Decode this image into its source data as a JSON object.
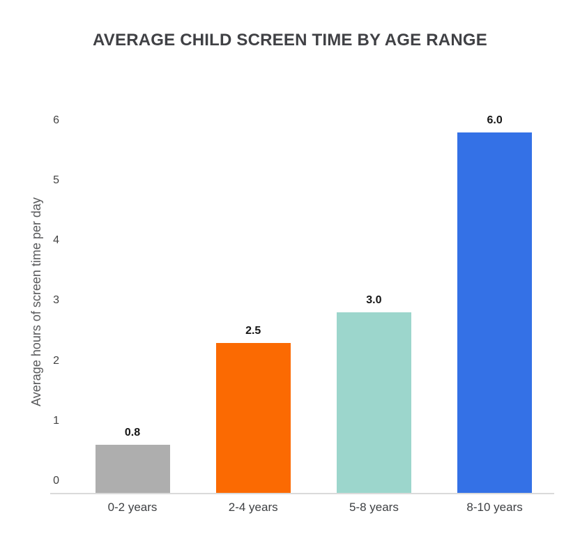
{
  "chart_data": {
    "type": "bar",
    "title": "AVERAGE CHILD SCREEN TIME BY AGE RANGE",
    "ylabel": "Average hours of screen time per day",
    "xlabel": "",
    "categories": [
      "0-2 years",
      "2-4 years",
      "5-8 years",
      "8-10 years"
    ],
    "values": [
      0.8,
      2.5,
      3.0,
      6.0
    ],
    "value_labels": [
      "0.8",
      "2.5",
      "3.0",
      "6.0"
    ],
    "bar_colors": [
      "#aeaeae",
      "#fb6a02",
      "#9cd6cc",
      "#3471e6"
    ],
    "bar_patterns": [
      "dots",
      "solid",
      "solid",
      "solid"
    ],
    "ylim": [
      0,
      6
    ],
    "yticks": [
      "0",
      "1",
      "2",
      "3",
      "4",
      "5",
      "6"
    ],
    "grid": false,
    "legend": "none",
    "background": "#ffffff",
    "colors": {
      "title": "#404145",
      "ylabel": "#58595b",
      "tick_label": "#424242",
      "x_label": "#3e4043",
      "value_label": "#151515",
      "axis_line": "#dadada"
    }
  }
}
